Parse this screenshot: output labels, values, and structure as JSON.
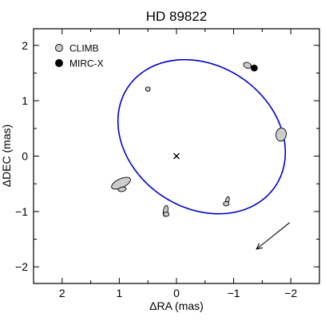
{
  "chart_data": {
    "type": "scatter",
    "title": "HD 89822",
    "xlabel": "ΔRA (mas)",
    "ylabel": "ΔDEC (mas)",
    "xlim": [
      2.5,
      -2.5
    ],
    "ylim": [
      -2.3,
      2.3
    ],
    "x_ticks": [
      2,
      1,
      0,
      -1,
      -2
    ],
    "x_tick_labels": [
      "2",
      "1",
      "0",
      "−1",
      "−2"
    ],
    "y_ticks": [
      2,
      1,
      0,
      -1,
      -2
    ],
    "y_tick_labels": [
      "2",
      "1",
      "0",
      "−1",
      "−2"
    ],
    "grid": false,
    "legend_position": "top-left",
    "orbit": {
      "center": [
        -0.44,
        0.35
      ],
      "semi_axes": [
        1.57,
        1.27
      ],
      "rotation_deg": 38,
      "color": "#0000cc"
    },
    "primary_marker": {
      "x": 0,
      "y": 0,
      "symbol": "×"
    },
    "series": [
      {
        "name": "CLIMB",
        "color": "#cccccc",
        "points": [
          {
            "x": 0.5,
            "y": 1.21,
            "ex": 0.04,
            "ey": 0.04,
            "angle": 0
          },
          {
            "x": -1.24,
            "y": 1.64,
            "ex": 0.07,
            "ey": 0.05,
            "angle": 20
          },
          {
            "x": -1.83,
            "y": 0.39,
            "ex": 0.09,
            "ey": 0.12,
            "angle": 10
          },
          {
            "x": 0.97,
            "y": -0.49,
            "ex": 0.18,
            "ey": 0.08,
            "angle": -25
          },
          {
            "x": 0.95,
            "y": -0.6,
            "ex": 0.07,
            "ey": 0.04,
            "angle": -10
          },
          {
            "x": 0.19,
            "y": -0.99,
            "ex": 0.04,
            "ey": 0.1,
            "angle": 10
          },
          {
            "x": 0.18,
            "y": -1.05,
            "ex": 0.05,
            "ey": 0.04,
            "angle": 0
          },
          {
            "x": -0.89,
            "y": -0.8,
            "ex": 0.03,
            "ey": 0.07,
            "angle": 15
          },
          {
            "x": -0.87,
            "y": -0.86,
            "ex": 0.05,
            "ey": 0.04,
            "angle": 0
          }
        ]
      },
      {
        "name": "MIRC-X",
        "color": "#000000",
        "points": [
          {
            "x": -1.36,
            "y": 1.59,
            "ex": 0.055,
            "ey": 0.055,
            "angle": 0
          }
        ]
      }
    ],
    "motion_arrow": {
      "from": [
        -1.98,
        -1.2
      ],
      "to": [
        -1.4,
        -1.68
      ]
    }
  }
}
